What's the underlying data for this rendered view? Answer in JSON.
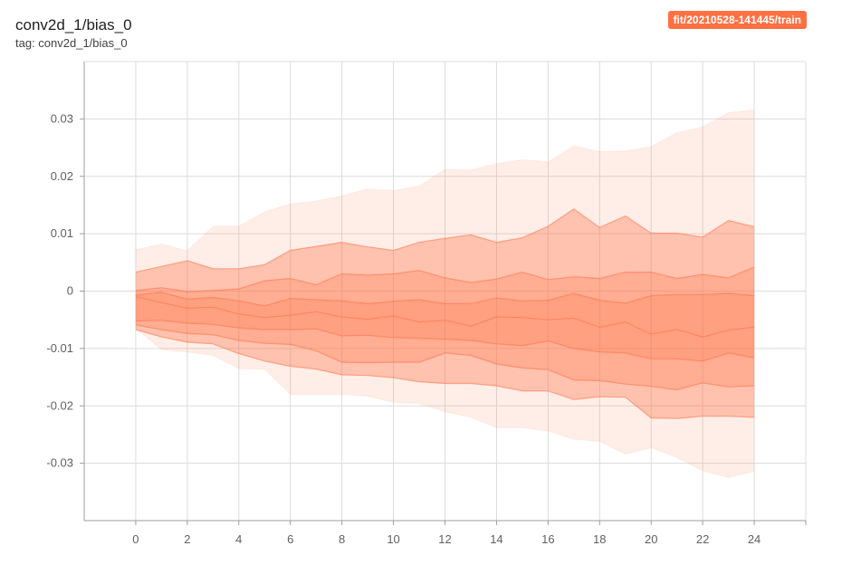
{
  "header": {
    "title": "conv2d_1/bias_0",
    "tag": "tag: conv2d_1/bias_0",
    "run": "fit/20210528-141445/train"
  },
  "chart_data": {
    "type": "area",
    "chart_kind": "distribution",
    "x": [
      0,
      1,
      2,
      3,
      4,
      5,
      6,
      7,
      8,
      9,
      10,
      11,
      12,
      13,
      14,
      15,
      16,
      17,
      18,
      19,
      20,
      21,
      22,
      23,
      24
    ],
    "xticks": [
      "0",
      "2",
      "4",
      "6",
      "8",
      "10",
      "12",
      "14",
      "16",
      "18",
      "20",
      "22",
      "24"
    ],
    "yticks": [
      "0.03",
      "0.02",
      "0.01",
      "0",
      "-0.01",
      "-0.02",
      "-0.03"
    ],
    "xlim": [
      -2,
      26
    ],
    "ylim": [
      -0.04,
      0.04
    ],
    "grid": true,
    "color": "#ff7043",
    "bands": {
      "max": [
        0.0072,
        0.0082,
        0.007,
        0.0113,
        0.0113,
        0.0138,
        0.0152,
        0.0157,
        0.0166,
        0.0178,
        0.0175,
        0.0183,
        0.0212,
        0.0211,
        0.0222,
        0.0229,
        0.0225,
        0.0253,
        0.0243,
        0.0244,
        0.0252,
        0.0276,
        0.0286,
        0.0311,
        0.0316
      ],
      "p93": [
        0.0033,
        0.0043,
        0.0053,
        0.0039,
        0.0039,
        0.0046,
        0.0071,
        0.0078,
        0.0085,
        0.0077,
        0.0071,
        0.0085,
        0.0092,
        0.0098,
        0.0085,
        0.0093,
        0.0113,
        0.0143,
        0.0111,
        0.0131,
        0.0101,
        0.0101,
        0.0094,
        0.0123,
        0.0112
      ],
      "p84": [
        0.0001,
        0.0006,
        -0.0001,
        0.0001,
        0.0004,
        0.0018,
        0.0022,
        0.0011,
        0.003,
        0.0028,
        0.003,
        0.0036,
        0.0023,
        0.0015,
        0.0021,
        0.0033,
        0.002,
        0.0025,
        0.0022,
        0.0033,
        0.0033,
        0.0022,
        0.0029,
        0.0023,
        0.0042
      ],
      "p69": [
        -0.0007,
        -0.0002,
        -0.0014,
        -0.0011,
        -0.0017,
        -0.0026,
        -0.0013,
        -0.0015,
        -0.0017,
        -0.0022,
        -0.0018,
        -0.0015,
        -0.0022,
        -0.0022,
        -0.0012,
        -0.0017,
        -0.0016,
        -0.0004,
        -0.0016,
        -0.0021,
        -0.0008,
        -0.0006,
        -0.0006,
        -0.0004,
        -0.0008
      ],
      "p50": [
        -0.001,
        -0.002,
        -0.003,
        -0.0028,
        -0.004,
        -0.0046,
        -0.0042,
        -0.0036,
        -0.0045,
        -0.0049,
        -0.0043,
        -0.0054,
        -0.0051,
        -0.0061,
        -0.0045,
        -0.0046,
        -0.005,
        -0.0047,
        -0.0063,
        -0.0054,
        -0.0075,
        -0.0067,
        -0.008,
        -0.0068,
        -0.0063
      ],
      "p31": [
        -0.0052,
        -0.0051,
        -0.0056,
        -0.0058,
        -0.0064,
        -0.0067,
        -0.0067,
        -0.0066,
        -0.0078,
        -0.0077,
        -0.0081,
        -0.0082,
        -0.0084,
        -0.0086,
        -0.0092,
        -0.0095,
        -0.0087,
        -0.01,
        -0.0106,
        -0.0108,
        -0.0118,
        -0.0118,
        -0.0122,
        -0.0108,
        -0.0116
      ],
      "p16": [
        -0.0059,
        -0.0067,
        -0.0074,
        -0.0076,
        -0.0086,
        -0.0091,
        -0.0093,
        -0.0104,
        -0.0124,
        -0.0125,
        -0.0124,
        -0.0124,
        -0.0108,
        -0.0112,
        -0.0127,
        -0.0134,
        -0.0137,
        -0.0155,
        -0.0156,
        -0.0162,
        -0.0166,
        -0.0172,
        -0.016,
        -0.0167,
        -0.0165
      ],
      "p7": [
        -0.0067,
        -0.008,
        -0.0089,
        -0.0092,
        -0.0109,
        -0.0122,
        -0.0131,
        -0.0136,
        -0.0146,
        -0.0147,
        -0.0151,
        -0.0158,
        -0.0161,
        -0.0161,
        -0.0165,
        -0.0174,
        -0.0174,
        -0.0189,
        -0.0184,
        -0.0185,
        -0.0221,
        -0.0222,
        -0.0218,
        -0.0218,
        -0.022
      ],
      "min": [
        -0.0065,
        -0.0102,
        -0.0106,
        -0.0112,
        -0.0135,
        -0.0136,
        -0.018,
        -0.018,
        -0.018,
        -0.0183,
        -0.0194,
        -0.0196,
        -0.021,
        -0.022,
        -0.0238,
        -0.0238,
        -0.0244,
        -0.0258,
        -0.0262,
        -0.0284,
        -0.0273,
        -0.029,
        -0.0313,
        -0.0325,
        -0.0314
      ]
    }
  }
}
